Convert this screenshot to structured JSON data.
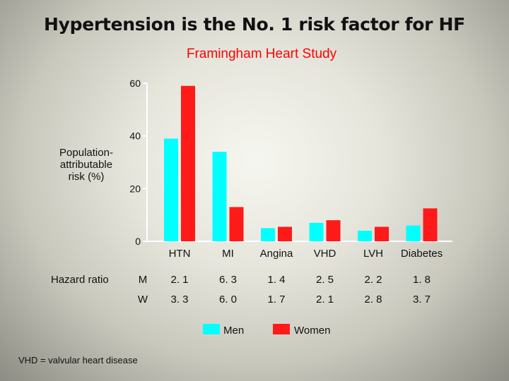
{
  "title": "Hypertension is the No. 1 risk factor for HF",
  "subtitle": "Framingham Heart Study",
  "chart_data": {
    "type": "bar",
    "title": "Framingham Heart Study",
    "ylabel": "Population-attributable risk (%)",
    "xlabel": "",
    "ylim": [
      0,
      60
    ],
    "yticks": [
      "60",
      "40",
      "20",
      "0"
    ],
    "categories": [
      "HTN",
      "MI",
      "Angina",
      "VHD",
      "LVH",
      "Diabetes"
    ],
    "series": [
      {
        "name": "Men",
        "color": "#00ffff",
        "values": [
          39,
          34,
          5,
          7,
          4,
          6
        ]
      },
      {
        "name": "Women",
        "color": "#ff1a1a",
        "values": [
          59,
          13,
          5.5,
          8,
          5.5,
          12.5
        ]
      }
    ],
    "legend": "bottom"
  },
  "ylabel_lines": [
    "Population-",
    "attributable",
    "risk (%)"
  ],
  "hazard": {
    "label": "Hazard ratio",
    "rows": [
      {
        "label": "M",
        "values": [
          "2. 1",
          "6. 3",
          "1. 4",
          "2. 5",
          "2. 2",
          "1. 8"
        ]
      },
      {
        "label": "W",
        "values": [
          "3. 3",
          "6. 0",
          "1. 7",
          "2. 1",
          "2. 8",
          "3. 7"
        ]
      }
    ]
  },
  "footnote": "VHD = valvular heart disease"
}
